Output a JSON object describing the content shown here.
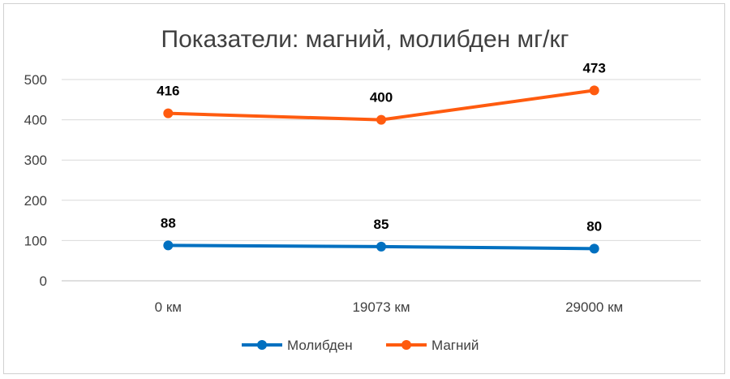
{
  "chart_data": {
    "type": "line",
    "title": "Показатели: магний, молибден мг/кг",
    "categories": [
      "0 км",
      "19073 км",
      "29000 км"
    ],
    "ylim": [
      0,
      500
    ],
    "yticks": [
      0,
      100,
      200,
      300,
      400,
      500
    ],
    "grid": true,
    "legend_position": "bottom",
    "series": [
      {
        "name": "Молибден",
        "values": [
          88,
          85,
          80
        ],
        "color": "#0070C0"
      },
      {
        "name": "Магний",
        "values": [
          416,
          400,
          473
        ],
        "color": "#FF5B0F"
      }
    ]
  }
}
